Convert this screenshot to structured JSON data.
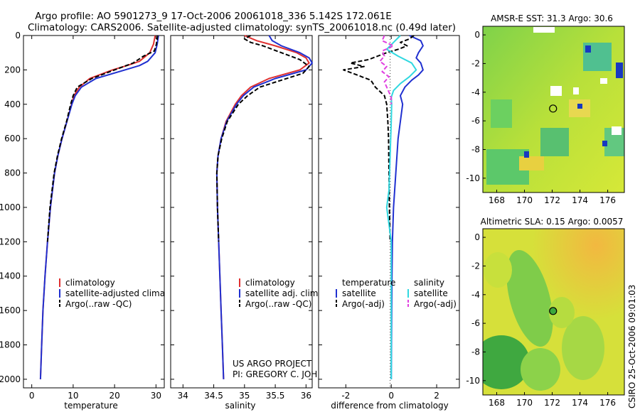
{
  "header": {
    "line1": "Argo profile: AO 5901273_9 17-Oct-2006 20061018_336 5.142S 172.061E",
    "line2": "Climatology: CARS2006. Satellite-adjusted climatology: synTS_20061018.nc (0.49d later)"
  },
  "chart_data": [
    {
      "id": "temperature-panel",
      "type": "line",
      "xlabel": "temperature",
      "ylabel": "",
      "xlim": [
        -2,
        32
      ],
      "ylim": [
        2050,
        0
      ],
      "xticks": [
        0,
        10,
        20,
        30
      ],
      "xtick_labels": [
        "0",
        "10",
        "20",
        "30"
      ],
      "yticks": [
        0,
        200,
        400,
        600,
        800,
        1000,
        1200,
        1400,
        1600,
        1800,
        2000
      ],
      "ytick_labels": [
        "0",
        "200",
        "400",
        "600",
        "800",
        "1000",
        "1200",
        "1400",
        "1600",
        "1800",
        "2000"
      ],
      "legend": [
        "climatology",
        "satellite-adjusted climatology",
        "Argo(..raw -QC)"
      ],
      "series": [
        {
          "name": "climatology",
          "color": "#e03030",
          "dash": false,
          "depth": [
            0,
            50,
            100,
            150,
            175,
            200,
            250,
            300,
            350,
            400,
            500,
            600,
            700,
            800,
            1000,
            1200,
            1400,
            1600,
            1800,
            2000
          ],
          "values": [
            29.8,
            29.4,
            28.5,
            26.0,
            23.0,
            19.5,
            14.0,
            11.5,
            10.2,
            9.6,
            8.5,
            7.3,
            6.3,
            5.5,
            4.5,
            3.8,
            3.2,
            2.7,
            2.4,
            2.1
          ]
        },
        {
          "name": "satellite-adjusted climatology",
          "color": "#2030d0",
          "dash": false,
          "depth": [
            0,
            50,
            100,
            150,
            175,
            200,
            250,
            300,
            350,
            400,
            500,
            600,
            700,
            800,
            1000,
            1200,
            1400,
            1600,
            1800,
            2000
          ],
          "values": [
            30.6,
            30.3,
            29.8,
            28.0,
            26.0,
            22.5,
            15.5,
            12.0,
            10.5,
            9.7,
            8.5,
            7.3,
            6.3,
            5.5,
            4.5,
            3.8,
            3.2,
            2.7,
            2.4,
            2.1
          ]
        },
        {
          "name": "Argo(..raw -QC)",
          "color": "#000000",
          "dash": true,
          "depth": [
            0,
            50,
            90,
            120,
            160,
            200,
            250,
            300,
            350,
            400,
            500,
            600,
            700,
            800,
            1000,
            1200
          ],
          "values": [
            30.4,
            30.1,
            29.6,
            27.0,
            24.5,
            20.0,
            14.5,
            11.0,
            10.0,
            9.4,
            8.4,
            7.2,
            6.2,
            5.4,
            4.4,
            3.8
          ]
        }
      ]
    },
    {
      "id": "salinity-panel",
      "type": "line",
      "xlabel": "salinity",
      "ylabel": "",
      "xlim": [
        33.8,
        36.1
      ],
      "ylim": [
        2050,
        0
      ],
      "xticks": [
        34,
        34.5,
        35,
        35.5,
        36
      ],
      "xtick_labels": [
        "34",
        "34.5",
        "35",
        "35.5",
        "36"
      ],
      "legend": [
        "climatology",
        "satellite adj. clim.",
        "Argo(..raw -QC)"
      ],
      "series": [
        {
          "name": "climatology",
          "color": "#e03030",
          "dash": false,
          "depth": [
            0,
            30,
            60,
            100,
            130,
            160,
            200,
            250,
            300,
            350,
            400,
            500,
            600,
            700,
            800,
            1000,
            1200,
            1400,
            1600,
            1800,
            2000
          ],
          "values": [
            35.0,
            35.2,
            35.5,
            35.85,
            36.0,
            36.05,
            35.9,
            35.4,
            35.1,
            34.95,
            34.85,
            34.7,
            34.62,
            34.57,
            34.55,
            34.56,
            34.58,
            34.6,
            34.62,
            34.64,
            34.66
          ]
        },
        {
          "name": "satellite adj. clim.",
          "color": "#2030d0",
          "dash": false,
          "depth": [
            0,
            30,
            60,
            100,
            130,
            160,
            200,
            250,
            300,
            350,
            400,
            500,
            600,
            700,
            800,
            1000,
            1200,
            1400,
            1600,
            1800,
            2000
          ],
          "values": [
            35.4,
            35.45,
            35.6,
            35.9,
            36.05,
            36.1,
            36.0,
            35.5,
            35.15,
            34.98,
            34.87,
            34.71,
            34.62,
            34.57,
            34.55,
            34.56,
            34.58,
            34.6,
            34.62,
            34.64,
            34.66
          ]
        },
        {
          "name": "Argo(..raw -QC)",
          "color": "#000000",
          "dash": true,
          "depth": [
            0,
            20,
            40,
            60,
            100,
            140,
            180,
            220,
            260,
            300,
            350,
            400,
            500,
            600,
            700,
            800,
            1000,
            1200
          ],
          "values": [
            35.1,
            35.0,
            35.1,
            35.3,
            35.6,
            35.9,
            36.05,
            35.95,
            35.6,
            35.25,
            35.05,
            34.9,
            34.72,
            34.63,
            34.57,
            34.55,
            34.56,
            34.58
          ]
        }
      ]
    },
    {
      "id": "difference-panel",
      "type": "line",
      "xlabel": "difference from climatology",
      "ylabel": "",
      "xlim": [
        -3.2,
        3.0
      ],
      "ylim": [
        2050,
        0
      ],
      "xticks": [
        -2,
        0,
        2
      ],
      "xtick_labels": [
        "-2",
        "0",
        "2"
      ],
      "legend": [
        "temperature",
        "satellite",
        "Argo(-adj)",
        "salinity",
        "satellite",
        "Argo(-adj)"
      ],
      "series": [
        {
          "name": "temperature satellite",
          "color": "#2030d0",
          "dash": false,
          "depth": [
            0,
            30,
            60,
            100,
            130,
            160,
            200,
            230,
            260,
            300,
            350,
            400,
            500,
            600,
            800,
            1000,
            1200,
            1400,
            1600,
            1800,
            2000
          ],
          "values": [
            0.8,
            1.3,
            1.4,
            1.2,
            1.1,
            1.3,
            1.4,
            1.2,
            0.9,
            0.6,
            0.4,
            0.5,
            0.4,
            0.3,
            0.2,
            0.1,
            0.05,
            0.03,
            0.02,
            0.01,
            0.0
          ]
        },
        {
          "name": "temperature Argo(-adj)",
          "color": "#000000",
          "dash": true,
          "depth": [
            0,
            20,
            40,
            60,
            80,
            100,
            120,
            140,
            160,
            180,
            200,
            230,
            260,
            300,
            350,
            400,
            500,
            600,
            800,
            1000,
            1200
          ],
          "values": [
            1.0,
            0.8,
            0.4,
            0.7,
            0.3,
            -0.2,
            -0.6,
            -1.0,
            -1.8,
            -1.2,
            -2.1,
            -1.5,
            -0.9,
            -0.7,
            -0.3,
            -0.2,
            -0.15,
            -0.12,
            -0.1,
            -0.08,
            -0.05
          ]
        },
        {
          "name": "salinity satellite",
          "color": "#30d8e0",
          "dash": false,
          "depth": [
            0,
            40,
            80,
            120,
            160,
            200,
            240,
            280,
            320,
            360,
            400,
            500,
            700,
            900,
            1000,
            1100,
            1200,
            1400,
            1600,
            1800,
            2000
          ],
          "values": [
            0.4,
            0.1,
            -0.2,
            0.3,
            0.9,
            1.1,
            0.8,
            0.4,
            0.1,
            0.0,
            0.02,
            0.0,
            -0.05,
            -0.1,
            -0.2,
            -0.1,
            0.0,
            0.0,
            0.0,
            0.0,
            0.0
          ]
        },
        {
          "name": "salinity Argo(-adj)",
          "color": "#e040e0",
          "dash": true,
          "depth": [
            0,
            30,
            60,
            90,
            120,
            150,
            180,
            210,
            240,
            270,
            300,
            330,
            360,
            400
          ],
          "values": [
            -0.3,
            -0.4,
            0.1,
            -0.4,
            -0.3,
            -0.5,
            -0.2,
            -0.4,
            -0.1,
            -0.3,
            -0.2,
            -0.1,
            0.0,
            0.0
          ]
        }
      ]
    },
    {
      "id": "sst-map",
      "type": "heatmap",
      "title": "AMSR-E SST: 31.3 Argo: 30.6",
      "xlim": [
        167,
        177.2
      ],
      "ylim": [
        -11,
        0.6
      ],
      "xticks": [
        168,
        170,
        172,
        174,
        176
      ],
      "xtick_labels": [
        "168",
        "170",
        "172",
        "174",
        "176"
      ],
      "yticks": [
        0,
        -2,
        -4,
        -6,
        -8,
        -10
      ],
      "ytick_labels": [
        "0",
        "-2",
        "-4",
        "-6",
        "-8",
        "-10"
      ],
      "marker": {
        "lon": 172.061,
        "lat": -5.142,
        "fill": "none"
      }
    },
    {
      "id": "sla-map",
      "type": "heatmap",
      "title": "Altimetric SLA: 0.15 Argo: 0.0057",
      "xlim": [
        167,
        177.2
      ],
      "ylim": [
        -11,
        0.6
      ],
      "xticks": [
        168,
        170,
        172,
        174,
        176
      ],
      "xtick_labels": [
        "168",
        "170",
        "172",
        "174",
        "176"
      ],
      "yticks": [
        0,
        -2,
        -4,
        -6,
        -8,
        -10
      ],
      "ytick_labels": [
        "0",
        "-2",
        "-4",
        "-6",
        "-8",
        "-10"
      ],
      "marker": {
        "lon": 172.061,
        "lat": -5.142,
        "fill": "#3ca83c"
      }
    }
  ],
  "project": {
    "line1": "US ARGO PROJECT",
    "line2": "PI: GREGORY C. JOHNSON"
  },
  "credit": "CSIRO 25-Oct-2006 09:01:03",
  "colors": {
    "red": "#e03030",
    "blue": "#2030d0",
    "cyan": "#30d8e0",
    "magenta": "#e040e0",
    "black": "#000000"
  }
}
